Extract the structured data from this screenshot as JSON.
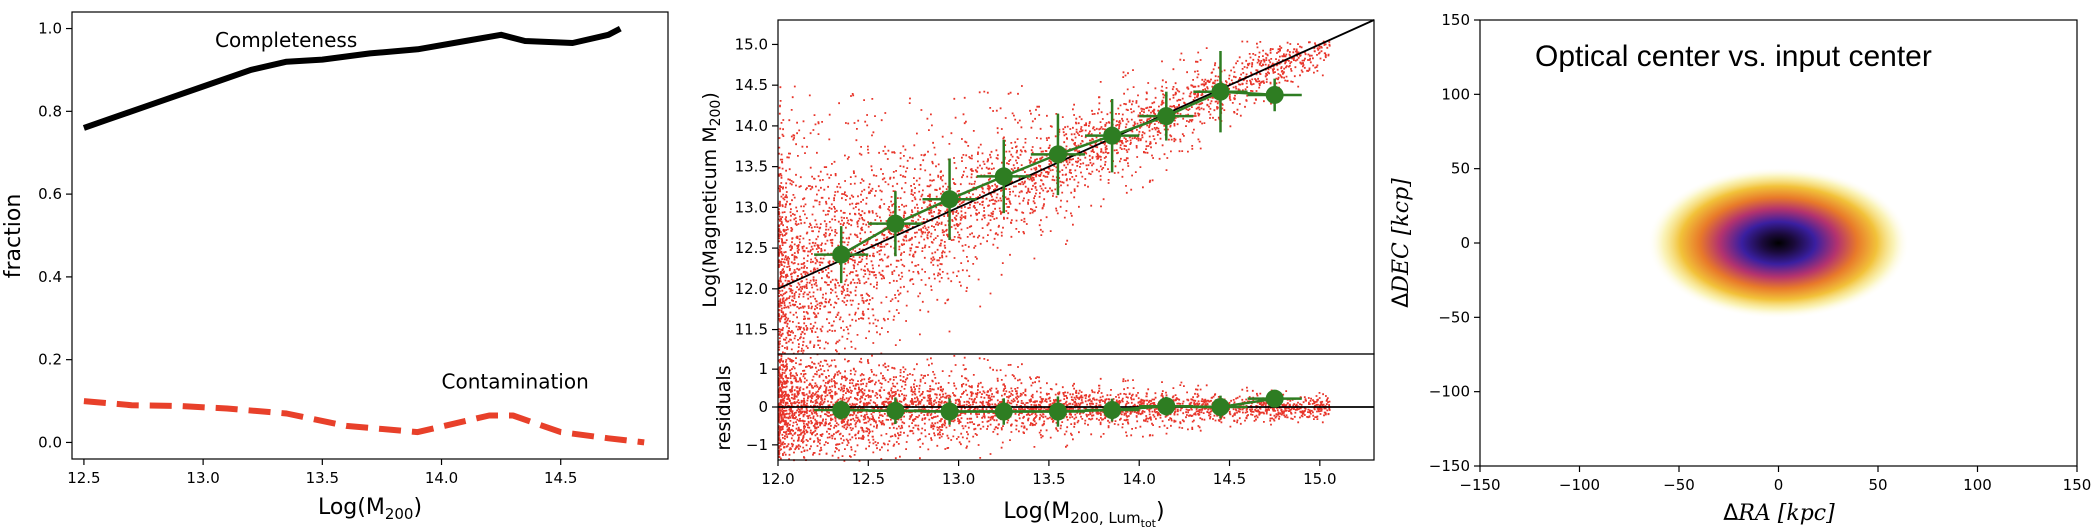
{
  "chart_data": [
    {
      "type": "line",
      "id": "panel1",
      "xlabel_main": "Log(M",
      "xlabel_sub": "200",
      "xlabel_end": ")",
      "ylabel": "fraction",
      "xlim": [
        12.45,
        14.95
      ],
      "ylim": [
        -0.04,
        1.04
      ],
      "xticks": [
        "12.5",
        "13.0",
        "13.5",
        "14.0",
        "14.5"
      ],
      "yticks": [
        "0.0",
        "0.2",
        "0.4",
        "0.6",
        "0.8",
        "1.0"
      ],
      "series": [
        {
          "name": "Completeness",
          "color": "#000000",
          "style": "solid",
          "x": [
            12.5,
            12.6,
            12.8,
            13.0,
            13.2,
            13.35,
            13.5,
            13.7,
            13.9,
            14.1,
            14.25,
            14.35,
            14.55,
            14.7,
            14.75
          ],
          "y": [
            0.76,
            0.78,
            0.82,
            0.86,
            0.9,
            0.92,
            0.925,
            0.94,
            0.95,
            0.97,
            0.985,
            0.97,
            0.965,
            0.985,
            1.0
          ]
        },
        {
          "name": "Contamination",
          "color": "#e8402a",
          "style": "dashed",
          "x": [
            12.5,
            12.7,
            12.9,
            13.1,
            13.35,
            13.6,
            13.9,
            14.05,
            14.2,
            14.3,
            14.5,
            14.7,
            14.85
          ],
          "y": [
            0.1,
            0.09,
            0.088,
            0.082,
            0.07,
            0.04,
            0.025,
            0.045,
            0.065,
            0.065,
            0.025,
            0.01,
            0.0
          ]
        }
      ],
      "annotations": [
        {
          "text": "Completeness",
          "x": 13.05,
          "y": 0.955
        },
        {
          "text": "Contamination",
          "x": 14.0,
          "y": 0.13
        }
      ]
    },
    {
      "type": "scatter",
      "id": "panel2",
      "ylabel_main": "Log(Magneticum M",
      "ylabel_sub": "200",
      "ylabel_end": ")",
      "ylabel_resid": "residuals",
      "xlabel_main": "Log(M",
      "xlabel_sub": "200, Lum",
      "xlabel_subsub": "tot",
      "xlabel_end": ")",
      "xlim": [
        12.0,
        15.3
      ],
      "ylim": [
        11.2,
        15.3
      ],
      "resid_ylim": [
        -1.4,
        1.4
      ],
      "xticks": [
        "12.0",
        "12.5",
        "13.0",
        "13.5",
        "14.0",
        "14.5",
        "15.0"
      ],
      "yticks": [
        "11.5",
        "12.0",
        "12.5",
        "13.0",
        "13.5",
        "14.0",
        "14.5",
        "15.0"
      ],
      "resid_yticks": [
        "−1",
        "0",
        "1"
      ],
      "points_color": "#e8352a",
      "fit_color": "#000000",
      "fit_line": {
        "x": [
          12.0,
          15.3
        ],
        "y": [
          12.0,
          15.3
        ]
      },
      "binned": {
        "color": "#2e7d22",
        "x": [
          12.35,
          12.65,
          12.95,
          13.25,
          13.55,
          13.85,
          14.15,
          14.45,
          14.75
        ],
        "y": [
          12.42,
          12.8,
          13.1,
          13.38,
          13.65,
          13.88,
          14.12,
          14.42,
          14.38
        ],
        "xerr": [
          0.15,
          0.15,
          0.15,
          0.15,
          0.15,
          0.15,
          0.15,
          0.15,
          0.15
        ],
        "yerr": [
          0.35,
          0.4,
          0.5,
          0.45,
          0.5,
          0.45,
          0.3,
          0.5,
          0.2
        ],
        "resid": [
          -0.08,
          -0.1,
          -0.12,
          -0.12,
          -0.12,
          -0.08,
          0.02,
          0.0,
          0.22
        ],
        "resid_err": [
          0.25,
          0.35,
          0.35,
          0.35,
          0.4,
          0.3,
          0.25,
          0.3,
          0.2
        ]
      }
    },
    {
      "type": "heatmap",
      "id": "panel3",
      "title": "Optical center vs. input center",
      "xlabel_delta": "Δ",
      "xlabel_main": "RA [kpc]",
      "ylabel_delta": "Δ",
      "ylabel_main": "DEC [kcp]",
      "xlim": [
        -150,
        150
      ],
      "ylim": [
        -150,
        150
      ],
      "xticks": [
        "−150",
        "−100",
        "−50",
        "0",
        "50",
        "100",
        "150"
      ],
      "yticks": [
        "−150",
        "−100",
        "−50",
        "0",
        "50",
        "100",
        "150"
      ],
      "center": [
        0,
        0
      ],
      "sigma": [
        22,
        17
      ]
    }
  ]
}
